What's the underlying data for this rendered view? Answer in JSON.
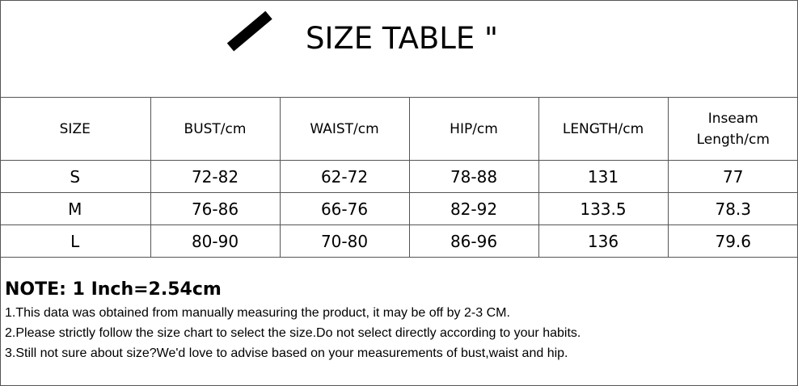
{
  "title": "SIZE TABLE \"",
  "table": {
    "headers": [
      "SIZE",
      "BUST/cm",
      "WAIST/cm",
      "HIP/cm",
      "LENGTH/cm",
      "Inseam Length/cm"
    ],
    "rows": [
      [
        "S",
        "72-82",
        "62-72",
        "78-88",
        "131",
        "77"
      ],
      [
        "M",
        "76-86",
        "66-76",
        "82-92",
        "133.5",
        "78.3"
      ],
      [
        "L",
        "80-90",
        "70-80",
        "86-96",
        "136",
        "79.6"
      ]
    ]
  },
  "notes": {
    "title": "NOTE: 1 Inch=2.54cm",
    "lines": [
      "1.This data was obtained from manually measuring the product, it may be off by 2-3 CM.",
      "2.Please strictly follow the size chart to select the size.Do not select directly according to your habits.",
      "3.Still not sure about size?We'd love to advise based on your measurements of bust,waist and hip."
    ]
  }
}
